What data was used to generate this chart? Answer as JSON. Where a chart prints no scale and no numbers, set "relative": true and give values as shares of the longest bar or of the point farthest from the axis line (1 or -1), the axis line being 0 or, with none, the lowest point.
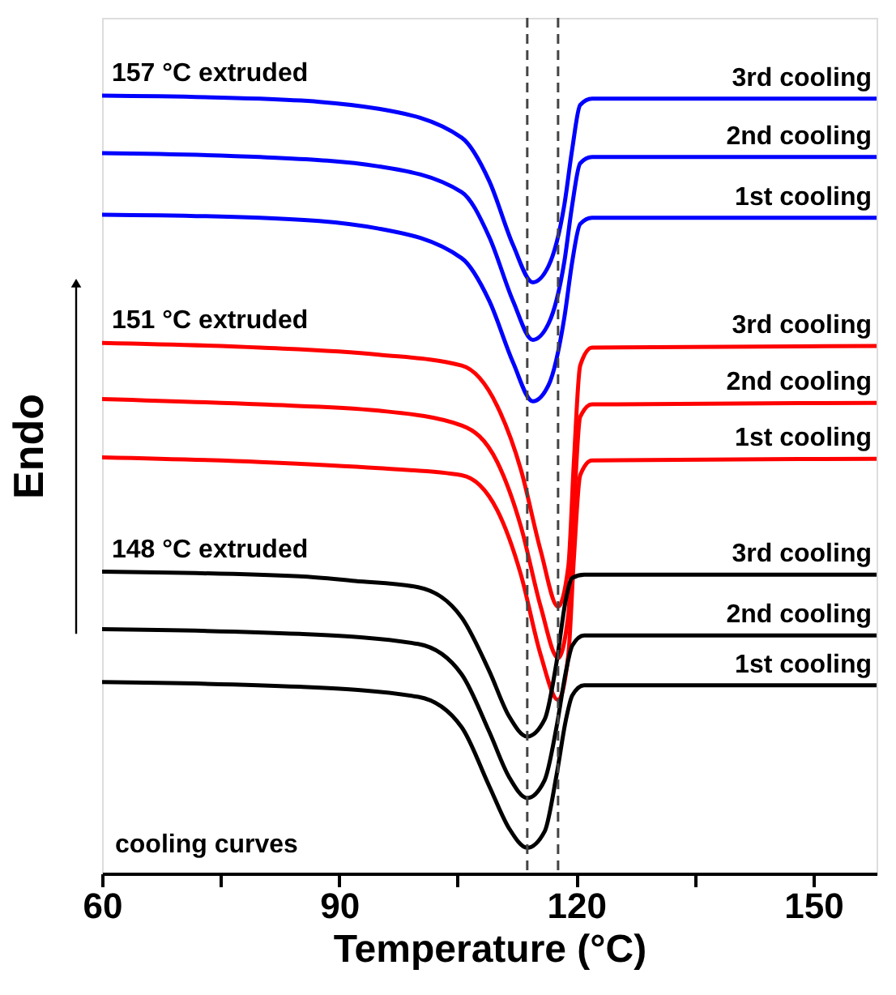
{
  "chart_data": {
    "type": "line",
    "relative": true,
    "xlabel": "Temperature (°C)",
    "ylabel": "Endo",
    "xlim": [
      60,
      158
    ],
    "xticks": [
      60,
      {
        "value": 75,
        "label": null
      },
      90,
      {
        "value": 105,
        "label": null
      },
      120,
      {
        "value": 135,
        "label": null
      },
      150
    ],
    "line_style": "solid",
    "series": [
      {
        "name": "3rd cooling",
        "color": "#0000ff",
        "x": [
          60,
          80,
          95,
          105.5,
          109,
          112,
          114.5,
          116.5,
          118.5,
          119.5,
          120.5,
          122,
          158
        ],
        "values": [
          1.0,
          0.996,
          0.983,
          0.946,
          0.89,
          0.808,
          0.76,
          0.781,
          0.86,
          0.932,
          0.988,
          0.996,
          0.996
        ]
      },
      {
        "name": "2nd cooling",
        "color": "#0000ff",
        "x": [
          60,
          80,
          95,
          105.5,
          109,
          112,
          114.5,
          116.5,
          118.5,
          119.5,
          120.5,
          122,
          158
        ],
        "values": [
          0.926,
          0.921,
          0.909,
          0.876,
          0.818,
          0.736,
          0.686,
          0.707,
          0.787,
          0.86,
          0.913,
          0.921,
          0.921
        ]
      },
      {
        "name": "1st cooling",
        "color": "#0000ff",
        "x": [
          60,
          80,
          95,
          105.5,
          109,
          112,
          114.5,
          116.5,
          118.5,
          119.5,
          120.5,
          122,
          158
        ],
        "values": [
          0.847,
          0.843,
          0.829,
          0.791,
          0.736,
          0.657,
          0.607,
          0.628,
          0.715,
          0.787,
          0.835,
          0.843,
          0.843
        ]
      },
      {
        "name": "3rd cooling",
        "color": "#ff0000",
        "x": [
          60,
          80,
          95,
          105.5,
          110,
          113,
          115.5,
          117.7,
          119,
          119.7,
          120.5,
          122,
          158
        ],
        "values": [
          0.682,
          0.676,
          0.667,
          0.653,
          0.601,
          0.519,
          0.415,
          0.343,
          0.395,
          0.529,
          0.653,
          0.676,
          0.678
        ]
      },
      {
        "name": "2nd cooling",
        "color": "#ff0000",
        "x": [
          60,
          80,
          95,
          105.5,
          110,
          113,
          115.5,
          117.7,
          119,
          119.7,
          120.5,
          122,
          158
        ],
        "values": [
          0.61,
          0.603,
          0.595,
          0.576,
          0.529,
          0.446,
          0.343,
          0.277,
          0.333,
          0.467,
          0.587,
          0.603,
          0.605
        ]
      },
      {
        "name": "1st cooling",
        "color": "#ff0000",
        "x": [
          60,
          80,
          95,
          105.5,
          110,
          113,
          115.5,
          117.7,
          119,
          119.7,
          120.5,
          122,
          158
        ],
        "values": [
          0.535,
          0.529,
          0.521,
          0.512,
          0.467,
          0.384,
          0.281,
          0.223,
          0.281,
          0.405,
          0.512,
          0.531,
          0.533
        ]
      },
      {
        "name": "3rd cooling",
        "color": "#000000",
        "x": [
          60,
          85,
          92,
          100,
          105.5,
          109,
          111.5,
          113.8,
          116,
          117.5,
          118.7,
          119.5,
          121,
          158
        ],
        "values": [
          0.388,
          0.382,
          0.376,
          0.368,
          0.329,
          0.26,
          0.202,
          0.176,
          0.198,
          0.271,
          0.353,
          0.38,
          0.384,
          0.384
        ]
      },
      {
        "name": "2nd cooling",
        "color": "#000000",
        "x": [
          60,
          85,
          100,
          105.5,
          109,
          111.5,
          113.8,
          116,
          117.5,
          118.7,
          119.5,
          121,
          158
        ],
        "values": [
          0.314,
          0.308,
          0.295,
          0.256,
          0.182,
          0.124,
          0.097,
          0.12,
          0.188,
          0.26,
          0.293,
          0.306,
          0.306
        ]
      },
      {
        "name": "1st cooling",
        "color": "#000000",
        "x": [
          60,
          85,
          100,
          105.5,
          109,
          111.5,
          113.8,
          116,
          117.5,
          118.7,
          119.5,
          121,
          158
        ],
        "values": [
          0.246,
          0.24,
          0.227,
          0.188,
          0.112,
          0.058,
          0.033,
          0.054,
          0.126,
          0.198,
          0.229,
          0.242,
          0.242
        ]
      }
    ],
    "ref_lines": [
      {
        "axis": "x",
        "value": 113.8,
        "label": null,
        "color": "#444444",
        "line_style": "dashed"
      },
      {
        "axis": "x",
        "value": 117.7,
        "label": null,
        "color": "#444444",
        "line_style": "dashed"
      }
    ],
    "annotations": [
      "157 °C extruded",
      "151 °C extruded",
      "148 °C extruded",
      "cooling curves"
    ]
  }
}
